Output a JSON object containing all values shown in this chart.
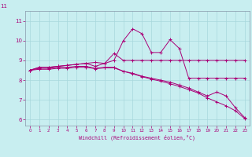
{
  "xlabel": "Windchill (Refroidissement éolien,°C)",
  "background_color": "#c8eef0",
  "grid_color": "#a8d8dc",
  "line_color": "#aa0077",
  "xlim": [
    -0.5,
    23.5
  ],
  "ylim": [
    5.7,
    11.5
  ],
  "yticks": [
    6,
    7,
    8,
    9,
    10,
    11
  ],
  "xticks": [
    0,
    1,
    2,
    3,
    4,
    5,
    6,
    7,
    8,
    9,
    10,
    11,
    12,
    13,
    14,
    15,
    16,
    17,
    18,
    19,
    20,
    21,
    22,
    23
  ],
  "series": [
    [
      8.5,
      8.65,
      8.65,
      8.7,
      8.75,
      8.8,
      8.85,
      8.9,
      8.85,
      9.0,
      10.0,
      10.6,
      10.35,
      9.4,
      9.4,
      10.05,
      9.6,
      8.1,
      8.1,
      8.1,
      8.1,
      8.1,
      8.1,
      8.1
    ],
    [
      8.5,
      8.65,
      8.65,
      8.7,
      8.75,
      8.8,
      8.85,
      8.7,
      8.85,
      9.35,
      9.0,
      9.0,
      9.0,
      9.0,
      9.0,
      9.0,
      9.0,
      9.0,
      9.0,
      9.0,
      9.0,
      9.0,
      9.0,
      9.0
    ],
    [
      8.5,
      8.6,
      8.6,
      8.65,
      8.65,
      8.7,
      8.7,
      8.6,
      8.65,
      8.65,
      8.45,
      8.35,
      8.2,
      8.1,
      8.0,
      7.9,
      7.75,
      7.6,
      7.4,
      7.2,
      7.4,
      7.2,
      6.6,
      6.1
    ],
    [
      8.5,
      8.55,
      8.55,
      8.6,
      8.6,
      8.65,
      8.65,
      8.58,
      8.62,
      8.62,
      8.45,
      8.32,
      8.18,
      8.05,
      7.95,
      7.82,
      7.68,
      7.52,
      7.35,
      7.1,
      6.9,
      6.7,
      6.45,
      6.05
    ]
  ]
}
